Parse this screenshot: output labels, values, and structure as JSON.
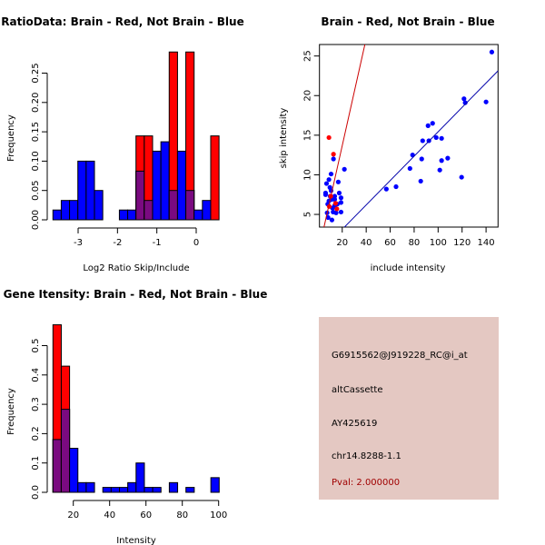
{
  "colors": {
    "red": "#ff0000",
    "blue": "#0000ff",
    "overlap": "#7a0a80",
    "panel_bg": "#e4c8c2",
    "pval_text": "#a00000",
    "red_line": "#cc0000",
    "blue_line": "#0000aa"
  },
  "chart_data": [
    {
      "type": "bar",
      "title": "RatioData: Brain - Red, Not Brain - Blue",
      "xlabel": "Log2 Ratio Skip/Include",
      "ylabel": "Frequency",
      "bin_start": -3.64,
      "bin_width": 0.211,
      "xticks": [
        -3,
        -2,
        -1,
        0
      ],
      "xtick_labels": [
        "-3",
        "-2",
        "-1",
        "0"
      ],
      "yticks": [
        0,
        0.05,
        0.1,
        0.15,
        0.2,
        0.25
      ],
      "ytick_labels": [
        "0.00",
        "0.05",
        "0.10",
        "0.15",
        "0.20",
        "0.25"
      ],
      "series": [
        {
          "name": "Not Brain",
          "color": "blue",
          "values": [
            0.0167,
            0.033,
            0.033,
            0.1,
            0.1,
            0.05,
            0,
            0,
            0.0167,
            0.0167,
            0.083,
            0.033,
            0.117,
            0.133,
            0.05,
            0.117,
            0.05,
            0.0167,
            0.033,
            0
          ]
        },
        {
          "name": "Brain",
          "color": "red",
          "values": [
            0,
            0,
            0,
            0,
            0,
            0,
            0,
            0,
            0,
            0,
            0.143,
            0.143,
            0,
            0,
            0.286,
            0,
            0.286,
            0,
            0,
            0.143
          ]
        }
      ]
    },
    {
      "type": "scatter",
      "title": "Brain - Red, Not Brain - Blue",
      "xlabel": "include intensity",
      "ylabel": "skip intensity",
      "xlim": [
        1,
        150
      ],
      "ylim": [
        3.4,
        26.45
      ],
      "xticks": [
        20,
        40,
        60,
        80,
        100,
        120,
        140
      ],
      "xtick_labels": [
        "20",
        "40",
        "60",
        "80",
        "100",
        "120",
        "140"
      ],
      "yticks": [
        5,
        10,
        15,
        20,
        25
      ],
      "ytick_labels": [
        "5",
        "10",
        "15",
        "20",
        "25"
      ],
      "fit_lines": [
        {
          "name": "Brain fit",
          "color": "red",
          "slope": 0.676,
          "intercept": 0.16
        },
        {
          "name": "Not Brain fit",
          "color": "blue",
          "slope": 0.154,
          "intercept": 0.03
        }
      ],
      "series": [
        {
          "name": "Not Brain",
          "color": "blue",
          "points": [
            [
              144.8,
              25.5
            ],
            [
              121.6,
              19.6
            ],
            [
              122.6,
              19.1
            ],
            [
              140,
              19.2
            ],
            [
              95.4,
              16.5
            ],
            [
              91.6,
              16.2
            ],
            [
              87.1,
              14.3
            ],
            [
              92.3,
              14.3
            ],
            [
              98.4,
              14.7
            ],
            [
              102.9,
              14.6
            ],
            [
              78.7,
              12.5
            ],
            [
              86.3,
              12.0
            ],
            [
              102.9,
              11.8
            ],
            [
              108.0,
              12.1
            ],
            [
              76.5,
              10.8
            ],
            [
              101.4,
              10.6
            ],
            [
              85.5,
              9.2
            ],
            [
              119.6,
              9.7
            ],
            [
              56.8,
              8.2
            ],
            [
              64.9,
              8.5
            ],
            [
              21.8,
              10.7
            ],
            [
              12.7,
              12.0
            ],
            [
              10.7,
              10.1
            ],
            [
              8.9,
              9.4
            ],
            [
              6.9,
              8.9
            ],
            [
              9.7,
              8.4
            ],
            [
              16.7,
              9.1
            ],
            [
              6.1,
              7.7
            ],
            [
              6.1,
              7.5
            ],
            [
              17.5,
              7.7
            ],
            [
              19,
              7.1
            ],
            [
              19,
              6.5
            ],
            [
              19,
              5.3
            ],
            [
              11.4,
              4.3
            ],
            [
              7.4,
              5.2
            ],
            [
              8.2,
              4.6
            ],
            [
              8.9,
              6.7
            ],
            [
              9.9,
              7.3
            ],
            [
              11.2,
              6.9
            ],
            [
              13.7,
              6.9
            ],
            [
              13.7,
              6.1
            ],
            [
              13.7,
              7.3
            ],
            [
              12.4,
              5.3
            ],
            [
              14.9,
              5.2
            ],
            [
              11.9,
              5.8
            ],
            [
              10.7,
              8.0
            ],
            [
              15.9,
              6.3
            ],
            [
              7.9,
              6.3
            ]
          ]
        },
        {
          "name": "Brain",
          "color": "red",
          "points": [
            [
              8.9,
              14.7
            ],
            [
              12.7,
              12.6
            ],
            [
              14.4,
              6.4
            ],
            [
              15.5,
              5.7
            ],
            [
              10.4,
              7.3
            ],
            [
              9.2,
              6.0
            ]
          ]
        }
      ]
    },
    {
      "type": "bar",
      "title": "Gene Itensity: Brain - Red, Not Brain - Blue",
      "xlabel": "Intensity",
      "ylabel": "Frequency",
      "bin_start": 8.8,
      "bin_width": 4.575,
      "xticks": [
        20,
        40,
        60,
        80,
        100
      ],
      "xtick_labels": [
        "20",
        "40",
        "60",
        "80",
        "100"
      ],
      "yticks": [
        0,
        0.1,
        0.2,
        0.3,
        0.4,
        0.5
      ],
      "ytick_labels": [
        "0.0",
        "0.1",
        "0.2",
        "0.3",
        "0.4",
        "0.5"
      ],
      "series": [
        {
          "name": "Not Brain",
          "color": "blue",
          "values": [
            0.18,
            0.283,
            0.15,
            0.033,
            0.033,
            0,
            0.0167,
            0.0167,
            0.0167,
            0.033,
            0.1,
            0.0167,
            0.0167,
            0,
            0.033,
            0,
            0.0167,
            0,
            0,
            0.05
          ]
        },
        {
          "name": "Brain",
          "color": "red",
          "values": [
            0.571,
            0.43,
            0,
            0,
            0,
            0,
            0,
            0,
            0,
            0,
            0,
            0,
            0,
            0,
            0,
            0,
            0,
            0,
            0,
            0
          ]
        }
      ]
    }
  ],
  "info_panel": {
    "probe_id": "G6915562@J919228_RC@i_at",
    "event_type": "altCassette",
    "accession": "AY425619",
    "location": "chr14.8288-1.1",
    "pval": "Pval: 2.000000"
  }
}
